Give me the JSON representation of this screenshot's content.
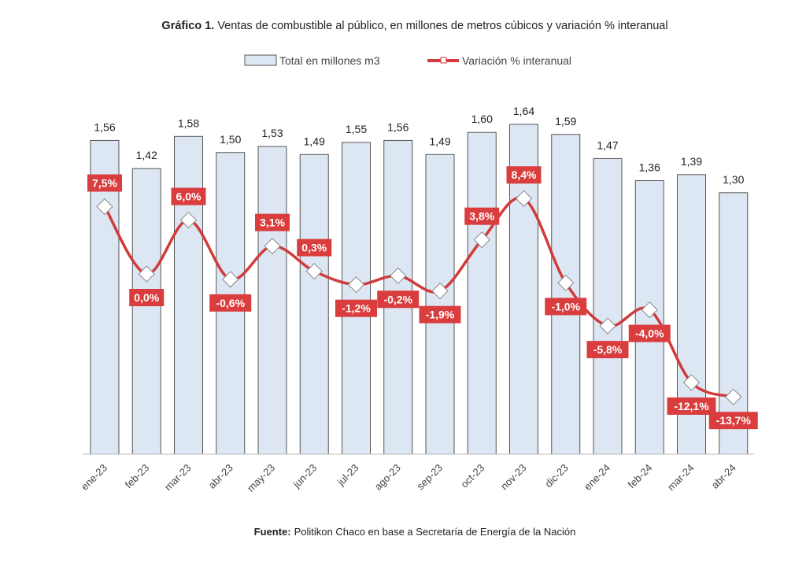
{
  "chart_data": {
    "type": "bar+line",
    "title_bold": "Gráfico 1.",
    "title": "Ventas de combustible al público, en millones de metros cúbicos y variación % interanual",
    "legend": {
      "placement": "top",
      "bar_label": "Total en millones m3",
      "line_label": "Variación % interanual"
    },
    "categories": [
      "ene-23",
      "feb-23",
      "mar-23",
      "abr-23",
      "may-23",
      "jun-23",
      "jul-23",
      "ago-23",
      "sep-23",
      "oct-23",
      "nov-23",
      "dic-23",
      "ene-24",
      "feb-24",
      "mar-24",
      "abr-24"
    ],
    "series": [
      {
        "name": "Total en millones m3",
        "type": "bar",
        "values": [
          1.56,
          1.42,
          1.58,
          1.5,
          1.53,
          1.49,
          1.55,
          1.56,
          1.49,
          1.6,
          1.64,
          1.59,
          1.47,
          1.36,
          1.39,
          1.3
        ],
        "labels": [
          "1,56",
          "1,42",
          "1,58",
          "1,50",
          "1,53",
          "1,49",
          "1,55",
          "1,56",
          "1,49",
          "1,60",
          "1,64",
          "1,59",
          "1,47",
          "1,36",
          "1,39",
          "1,30"
        ]
      },
      {
        "name": "Variación % interanual",
        "type": "line",
        "values": [
          7.5,
          0.0,
          6.0,
          -0.6,
          3.1,
          0.3,
          -1.2,
          -0.2,
          -1.9,
          3.8,
          8.4,
          -1.0,
          -5.8,
          -4.0,
          -12.1,
          -13.7
        ],
        "labels": [
          "7,5%",
          "0,0%",
          "6,0%",
          "-0,6%",
          "3,1%",
          "0,3%",
          "-1,2%",
          "-0,2%",
          "-1,9%",
          "3,8%",
          "8,4%",
          "-1,0%",
          "-5,8%",
          "-4,0%",
          "-12,1%",
          "-13,7%"
        ]
      }
    ],
    "grid": false,
    "colors": {
      "bar_fill": "#dde6f3",
      "bar_stroke": "#555555",
      "line": "#d13b3b",
      "label_bg": "#d93d3d"
    },
    "source_bold": "Fuente:",
    "source": "Politikon Chaco en base a Secretaría de Energía de la Nación"
  }
}
